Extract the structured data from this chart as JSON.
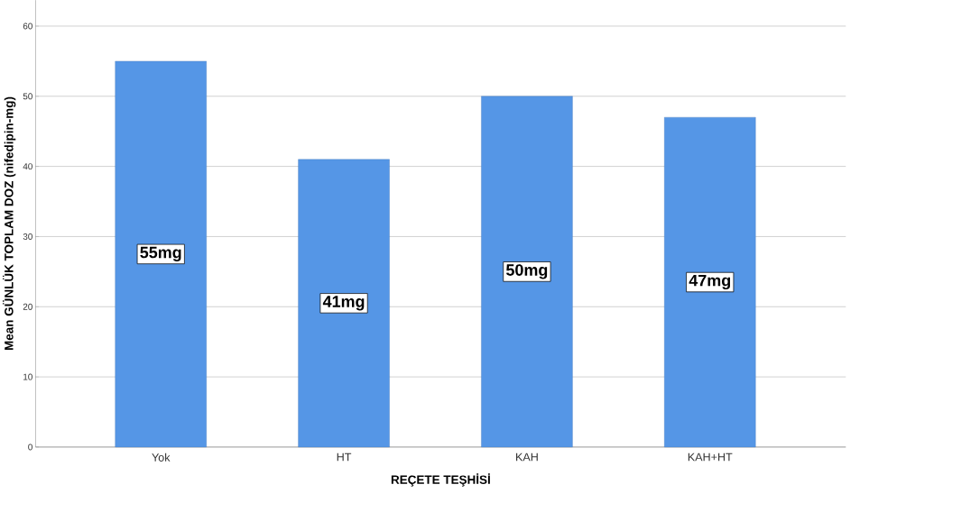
{
  "chart_data": {
    "type": "bar",
    "xlabel": "REÇETE TEŞHİSİ",
    "ylabel": "Mean GÜNLÜK TOPLAM DOZ (nifedipin-mg)",
    "categories": [
      "Yok",
      "HT",
      "KAH",
      "KAH+HT"
    ],
    "values": [
      55,
      41,
      50,
      47
    ],
    "value_labels": [
      "55mg",
      "41mg",
      "50mg",
      "47mg"
    ],
    "color": "#5596e6",
    "ylim": [
      0,
      63.7
    ],
    "yticks": [
      0,
      10,
      20,
      30,
      40,
      50,
      60
    ],
    "grid": "y"
  }
}
